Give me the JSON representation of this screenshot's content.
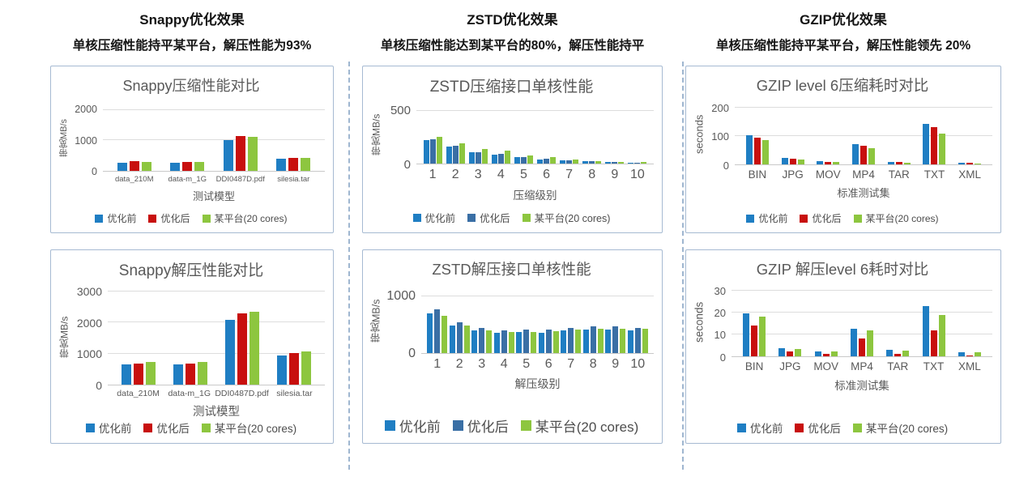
{
  "page": {
    "background": "#ffffff"
  },
  "colors": {
    "series_blue": "#1F7EC3",
    "series_red": "#C8100E",
    "series_steelblue": "#3A6FA5",
    "series_green": "#8DC63F",
    "gridline": "#DDDDDD",
    "axis_line": "#C9C9C9",
    "panel_border": "#A6BAD2",
    "divider": "#9FB6D0",
    "chart_text": "#595959",
    "header_text": "#141414"
  },
  "columns": [
    {
      "title": "Snappy优化效果",
      "subtitle": "单核压缩性能持平某平台，解压性能为93%"
    },
    {
      "title": "ZSTD优化效果",
      "subtitle": "单核压缩性能达到某平台的80%，解压性能持平"
    },
    {
      "title": "GZIP优化效果",
      "subtitle": "单核压缩性能持平某平台，解压性能领先 20%"
    }
  ],
  "chart_data": [
    {
      "type": "bar",
      "title": "Snappy压缩性能对比",
      "ylabel": "带宽MB/s",
      "xlabel": "测试模型",
      "yticks": [
        0,
        1000,
        2000
      ],
      "ylim": [
        0,
        2200
      ],
      "grid": true,
      "legend_position": "bottom",
      "categories": [
        "data_210M",
        "data-m_1G",
        "DDI0487D.pdf",
        "silesia.tar"
      ],
      "series": [
        {
          "name": "优化前",
          "color": "#1F7EC3",
          "values": [
            270,
            270,
            1000,
            400
          ]
        },
        {
          "name": "优化后",
          "color": "#C8100E",
          "values": [
            310,
            300,
            1130,
            430
          ]
        },
        {
          "name": "某平台(20 cores)",
          "color": "#8DC63F",
          "values": [
            300,
            295,
            1110,
            430
          ]
        }
      ]
    },
    {
      "type": "bar",
      "title": "Snappy解压性能对比",
      "ylabel": "带宽MB/s",
      "xlabel": "测试模型",
      "yticks": [
        0,
        1000,
        2000,
        3000
      ],
      "ylim": [
        0,
        3100
      ],
      "grid": true,
      "legend_position": "bottom",
      "categories": [
        "data_210M",
        "data-m_1G",
        "DDI0487D.pdf",
        "silesia.tar"
      ],
      "series": [
        {
          "name": "优化前",
          "color": "#1F7EC3",
          "values": [
            650,
            650,
            2080,
            940
          ]
        },
        {
          "name": "优化后",
          "color": "#C8100E",
          "values": [
            680,
            690,
            2300,
            1010
          ]
        },
        {
          "name": "某平台(20 cores)",
          "color": "#8DC63F",
          "values": [
            730,
            730,
            2340,
            1060
          ]
        }
      ]
    },
    {
      "type": "bar",
      "title": "ZSTD压缩接口单核性能",
      "ylabel": "带宽MB/s",
      "xlabel": "压缩级别",
      "yticks": [
        0,
        500
      ],
      "ylim": [
        0,
        560
      ],
      "grid": true,
      "legend_position": "bottom",
      "categories": [
        "1",
        "2",
        "3",
        "4",
        "5",
        "6",
        "7",
        "8",
        "9",
        "10"
      ],
      "series": [
        {
          "name": "优化前",
          "color": "#1F7EC3",
          "values": [
            220,
            165,
            105,
            88,
            58,
            42,
            28,
            20,
            13,
            10
          ]
        },
        {
          "name": "优化后",
          "color": "#3A6FA5",
          "values": [
            228,
            172,
            108,
            92,
            62,
            45,
            30,
            22,
            14,
            11
          ]
        },
        {
          "name": "某平台(20 cores)",
          "color": "#8DC63F",
          "values": [
            255,
            195,
            135,
            120,
            78,
            58,
            38,
            26,
            17,
            14
          ]
        }
      ]
    },
    {
      "type": "bar",
      "title": "ZSTD解压接口单核性能",
      "ylabel": "带宽MB/s",
      "xlabel": "解压级别",
      "yticks": [
        0,
        1000
      ],
      "ylim": [
        0,
        1150
      ],
      "grid": true,
      "legend_position": "bottom",
      "categories": [
        "1",
        "2",
        "3",
        "4",
        "5",
        "6",
        "7",
        "8",
        "9",
        "10"
      ],
      "series": [
        {
          "name": "优化前",
          "color": "#1F7EC3",
          "values": [
            700,
            490,
            400,
            355,
            365,
            355,
            400,
            410,
            410,
            395
          ]
        },
        {
          "name": "优化后",
          "color": "#3A6FA5",
          "values": [
            760,
            540,
            440,
            395,
            410,
            405,
            445,
            465,
            465,
            445
          ]
        },
        {
          "name": "某平台(20 cores)",
          "color": "#8DC63F",
          "values": [
            650,
            480,
            400,
            365,
            370,
            380,
            410,
            425,
            420,
            420
          ]
        }
      ]
    },
    {
      "type": "bar",
      "title": "GZIP level 6压缩耗时对比",
      "ylabel": "seconds",
      "xlabel": "标准测试集",
      "yticks": [
        0,
        100,
        200
      ],
      "ylim": [
        0,
        215
      ],
      "grid": true,
      "legend_position": "bottom",
      "categories": [
        "BIN",
        "JPG",
        "MOV",
        "MP4",
        "TAR",
        "TXT",
        "XML"
      ],
      "series": [
        {
          "name": "优化前",
          "color": "#1F7EC3",
          "values": [
            103,
            24,
            12,
            73,
            9,
            142,
            6
          ]
        },
        {
          "name": "优化后",
          "color": "#C8100E",
          "values": [
            96,
            21,
            10,
            67,
            8,
            131,
            5
          ]
        },
        {
          "name": "某平台(20 cores)",
          "color": "#8DC63F",
          "values": [
            87,
            18,
            10,
            57,
            7,
            110,
            4
          ]
        }
      ]
    },
    {
      "type": "bar",
      "title": "GZIP 解压level 6耗时对比",
      "ylabel": "seconds",
      "xlabel": "标准测试集",
      "yticks": [
        0,
        10,
        20,
        30
      ],
      "ylim": [
        0,
        31.5
      ],
      "grid": true,
      "legend_position": "bottom",
      "categories": [
        "BIN",
        "JPG",
        "MOV",
        "MP4",
        "TAR",
        "TXT",
        "XML"
      ],
      "series": [
        {
          "name": "优化前",
          "color": "#1F7EC3",
          "values": [
            19.5,
            3.8,
            2.1,
            12.5,
            2.9,
            23,
            1.8
          ]
        },
        {
          "name": "优化后",
          "color": "#C8100E",
          "values": [
            14,
            2.1,
            1.2,
            8,
            1.1,
            12,
            0.4
          ]
        },
        {
          "name": "某平台(20 cores)",
          "color": "#8DC63F",
          "values": [
            18,
            3.3,
            2.2,
            12,
            2.6,
            19,
            2
          ]
        }
      ]
    }
  ]
}
